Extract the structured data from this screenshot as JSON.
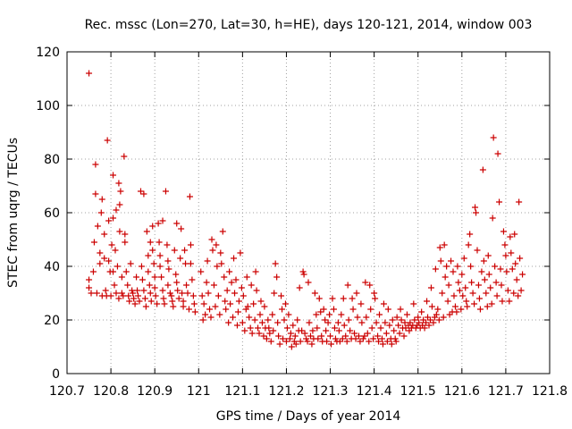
{
  "chart_data": {
    "type": "scatter",
    "title": "Rec. mssc (Lon=270, Lat=30, h=HE), days 120-121, 2014, window 003",
    "xlabel": "GPS time / Days of year 2014",
    "ylabel": "STEC from uqrg / TECUs",
    "xlim": [
      120.7,
      121.8
    ],
    "ylim": [
      0,
      120
    ],
    "xticks": [
      120.7,
      120.8,
      120.9,
      121.0,
      121.1,
      121.2,
      121.3,
      121.4,
      121.5,
      121.6,
      121.7,
      121.8
    ],
    "xtick_labels": [
      "120.7",
      "120.8",
      "120.9",
      "121",
      "121.1",
      "121.2",
      "121.3",
      "121.4",
      "121.5",
      "121.6",
      "121.7",
      "121.8"
    ],
    "yticks": [
      0,
      20,
      40,
      60,
      80,
      100,
      120
    ],
    "ytick_labels": [
      "0",
      "20",
      "40",
      "60",
      "80",
      "100",
      "120"
    ],
    "grid": true,
    "marker": "+",
    "color": "#cc0000",
    "points": [
      [
        120.75,
        112
      ],
      [
        120.75,
        35
      ],
      [
        120.75,
        32
      ],
      [
        120.755,
        30
      ],
      [
        120.76,
        38
      ],
      [
        120.762,
        49
      ],
      [
        120.765,
        78
      ],
      [
        120.765,
        67
      ],
      [
        120.768,
        30
      ],
      [
        120.77,
        55
      ],
      [
        120.775,
        45
      ],
      [
        120.775,
        41
      ],
      [
        120.778,
        60
      ],
      [
        120.78,
        65
      ],
      [
        120.78,
        29
      ],
      [
        120.785,
        52
      ],
      [
        120.785,
        43
      ],
      [
        120.788,
        31
      ],
      [
        120.79,
        29
      ],
      [
        120.792,
        87
      ],
      [
        120.795,
        57
      ],
      [
        120.795,
        42
      ],
      [
        120.798,
        38
      ],
      [
        120.8,
        29
      ],
      [
        120.802,
        48
      ],
      [
        120.805,
        74
      ],
      [
        120.805,
        58
      ],
      [
        120.805,
        38
      ],
      [
        120.808,
        33
      ],
      [
        120.81,
        46
      ],
      [
        120.812,
        61
      ],
      [
        120.812,
        30
      ],
      [
        120.815,
        40
      ],
      [
        120.818,
        71
      ],
      [
        120.818,
        28
      ],
      [
        120.82,
        63
      ],
      [
        120.82,
        53
      ],
      [
        120.822,
        68
      ],
      [
        120.825,
        36
      ],
      [
        120.825,
        30
      ],
      [
        120.828,
        29
      ],
      [
        120.83,
        81
      ],
      [
        120.832,
        52
      ],
      [
        120.832,
        49
      ],
      [
        120.835,
        38
      ],
      [
        120.838,
        33
      ],
      [
        120.84,
        29
      ],
      [
        120.842,
        27
      ],
      [
        120.845,
        41
      ],
      [
        120.848,
        31
      ],
      [
        120.85,
        30
      ],
      [
        120.852,
        28
      ],
      [
        120.855,
        26
      ],
      [
        120.858,
        36
      ],
      [
        120.86,
        31
      ],
      [
        120.862,
        29
      ],
      [
        120.865,
        27
      ],
      [
        120.868,
        68
      ],
      [
        120.87,
        40
      ],
      [
        120.872,
        35
      ],
      [
        120.875,
        67
      ],
      [
        120.875,
        31
      ],
      [
        120.878,
        28
      ],
      [
        120.88,
        25
      ],
      [
        120.882,
        53
      ],
      [
        120.885,
        44
      ],
      [
        120.885,
        38
      ],
      [
        120.888,
        33
      ],
      [
        120.89,
        49
      ],
      [
        120.89,
        30
      ],
      [
        120.892,
        27
      ],
      [
        120.895,
        55
      ],
      [
        120.895,
        46
      ],
      [
        120.898,
        41
      ],
      [
        120.9,
        36
      ],
      [
        120.9,
        32
      ],
      [
        120.902,
        29
      ],
      [
        120.905,
        26
      ],
      [
        120.908,
        56
      ],
      [
        120.91,
        49
      ],
      [
        120.912,
        44
      ],
      [
        120.912,
        40
      ],
      [
        120.915,
        36
      ],
      [
        120.918,
        57
      ],
      [
        120.918,
        31
      ],
      [
        120.92,
        28
      ],
      [
        120.922,
        26
      ],
      [
        120.925,
        68
      ],
      [
        120.928,
        48
      ],
      [
        120.93,
        42
      ],
      [
        120.93,
        33
      ],
      [
        120.932,
        39
      ],
      [
        120.935,
        30
      ],
      [
        120.938,
        29
      ],
      [
        120.94,
        27
      ],
      [
        120.942,
        25
      ],
      [
        120.945,
        46
      ],
      [
        120.948,
        37
      ],
      [
        120.95,
        56
      ],
      [
        120.95,
        34
      ],
      [
        120.952,
        31
      ],
      [
        120.955,
        28
      ],
      [
        120.958,
        43
      ],
      [
        120.96,
        54
      ],
      [
        120.962,
        30
      ],
      [
        120.965,
        27
      ],
      [
        120.965,
        25
      ],
      [
        120.968,
        46
      ],
      [
        120.97,
        41
      ],
      [
        120.972,
        33
      ],
      [
        120.975,
        30
      ],
      [
        120.978,
        24
      ],
      [
        120.98,
        66
      ],
      [
        120.982,
        48
      ],
      [
        120.982,
        41
      ],
      [
        120.985,
        35
      ],
      [
        120.988,
        29
      ],
      [
        120.99,
        26
      ],
      [
        120.992,
        23
      ],
      [
        121.005,
        38
      ],
      [
        121.008,
        29
      ],
      [
        121.01,
        20
      ],
      [
        121.012,
        26
      ],
      [
        121.015,
        22
      ],
      [
        121.018,
        34
      ],
      [
        121.02,
        42
      ],
      [
        121.022,
        30
      ],
      [
        121.025,
        24
      ],
      [
        121.028,
        21
      ],
      [
        121.03,
        50
      ],
      [
        121.032,
        46
      ],
      [
        121.035,
        33
      ],
      [
        121.038,
        25
      ],
      [
        121.04,
        48
      ],
      [
        121.042,
        40
      ],
      [
        121.045,
        29
      ],
      [
        121.048,
        22
      ],
      [
        121.05,
        45
      ],
      [
        121.052,
        41
      ],
      [
        121.055,
        53
      ],
      [
        121.058,
        36
      ],
      [
        121.06,
        27
      ],
      [
        121.062,
        24
      ],
      [
        121.065,
        31
      ],
      [
        121.068,
        19
      ],
      [
        121.07,
        38
      ],
      [
        121.072,
        26
      ],
      [
        121.075,
        34
      ],
      [
        121.078,
        21
      ],
      [
        121.08,
        43
      ],
      [
        121.082,
        30
      ],
      [
        121.085,
        35
      ],
      [
        121.088,
        18
      ],
      [
        121.09,
        23
      ],
      [
        121.092,
        27
      ],
      [
        121.095,
        45
      ],
      [
        121.098,
        32
      ],
      [
        121.1,
        19
      ],
      [
        121.102,
        29
      ],
      [
        121.105,
        16
      ],
      [
        121.108,
        24
      ],
      [
        121.11,
        36
      ],
      [
        121.112,
        25
      ],
      [
        121.115,
        21
      ],
      [
        121.118,
        17
      ],
      [
        121.12,
        33
      ],
      [
        121.122,
        15
      ],
      [
        121.125,
        26
      ],
      [
        121.128,
        20
      ],
      [
        121.13,
        38
      ],
      [
        121.132,
        31
      ],
      [
        121.135,
        17
      ],
      [
        121.138,
        15
      ],
      [
        121.14,
        22
      ],
      [
        121.142,
        27
      ],
      [
        121.145,
        19
      ],
      [
        121.148,
        14
      ],
      [
        121.15,
        25
      ],
      [
        121.152,
        17
      ],
      [
        121.155,
        13
      ],
      [
        121.158,
        20
      ],
      [
        121.16,
        17
      ],
      [
        121.162,
        15
      ],
      [
        121.165,
        12
      ],
      [
        121.168,
        22
      ],
      [
        121.17,
        16
      ],
      [
        121.172,
        30
      ],
      [
        121.175,
        41
      ],
      [
        121.178,
        36
      ],
      [
        121.18,
        19
      ],
      [
        121.182,
        14
      ],
      [
        121.185,
        11
      ],
      [
        121.188,
        29
      ],
      [
        121.19,
        24
      ],
      [
        121.192,
        13
      ],
      [
        121.195,
        20
      ],
      [
        121.198,
        26
      ],
      [
        121.2,
        12
      ],
      [
        121.202,
        17
      ],
      [
        121.205,
        22
      ],
      [
        121.208,
        13
      ],
      [
        121.21,
        15
      ],
      [
        121.212,
        10
      ],
      [
        121.215,
        18
      ],
      [
        121.218,
        12
      ],
      [
        121.22,
        14
      ],
      [
        121.222,
        11
      ],
      [
        121.225,
        20
      ],
      [
        121.228,
        16
      ],
      [
        121.23,
        32
      ],
      [
        121.232,
        12
      ],
      [
        121.235,
        16
      ],
      [
        121.238,
        38
      ],
      [
        121.24,
        37
      ],
      [
        121.242,
        15
      ],
      [
        121.245,
        13
      ],
      [
        121.248,
        12
      ],
      [
        121.25,
        34
      ],
      [
        121.252,
        19
      ],
      [
        121.255,
        14
      ],
      [
        121.258,
        11
      ],
      [
        121.26,
        16
      ],
      [
        121.262,
        13
      ],
      [
        121.265,
        30
      ],
      [
        121.268,
        22
      ],
      [
        121.27,
        17
      ],
      [
        121.272,
        13
      ],
      [
        121.275,
        28
      ],
      [
        121.278,
        23
      ],
      [
        121.28,
        14
      ],
      [
        121.282,
        12
      ],
      [
        121.285,
        24
      ],
      [
        121.288,
        20
      ],
      [
        121.29,
        16
      ],
      [
        121.292,
        12
      ],
      [
        121.295,
        19
      ],
      [
        121.298,
        22
      ],
      [
        121.3,
        14
      ],
      [
        121.302,
        11
      ],
      [
        121.305,
        28
      ],
      [
        121.308,
        24
      ],
      [
        121.31,
        17
      ],
      [
        121.312,
        13
      ],
      [
        121.315,
        12
      ],
      [
        121.318,
        19
      ],
      [
        121.32,
        16
      ],
      [
        121.322,
        12
      ],
      [
        121.325,
        22
      ],
      [
        121.328,
        13
      ],
      [
        121.33,
        28
      ],
      [
        121.332,
        18
      ],
      [
        121.335,
        14
      ],
      [
        121.338,
        12
      ],
      [
        121.34,
        33
      ],
      [
        121.342,
        20
      ],
      [
        121.345,
        16
      ],
      [
        121.348,
        13
      ],
      [
        121.35,
        28
      ],
      [
        121.352,
        24
      ],
      [
        121.355,
        15
      ],
      [
        121.358,
        13
      ],
      [
        121.36,
        30
      ],
      [
        121.362,
        21
      ],
      [
        121.365,
        14
      ],
      [
        121.368,
        12
      ],
      [
        121.37,
        26
      ],
      [
        121.372,
        19
      ],
      [
        121.375,
        13
      ],
      [
        121.378,
        14
      ],
      [
        121.38,
        34
      ],
      [
        121.382,
        21
      ],
      [
        121.385,
        15
      ],
      [
        121.388,
        12
      ],
      [
        121.39,
        33
      ],
      [
        121.392,
        24
      ],
      [
        121.395,
        17
      ],
      [
        121.398,
        13
      ],
      [
        121.4,
        30
      ],
      [
        121.402,
        28
      ],
      [
        121.405,
        19
      ],
      [
        121.408,
        14
      ],
      [
        121.41,
        12
      ],
      [
        121.412,
        22
      ],
      [
        121.415,
        17
      ],
      [
        121.418,
        13
      ],
      [
        121.42,
        11
      ],
      [
        121.422,
        26
      ],
      [
        121.425,
        19
      ],
      [
        121.428,
        15
      ],
      [
        121.43,
        12
      ],
      [
        121.432,
        24
      ],
      [
        121.435,
        18
      ],
      [
        121.438,
        13
      ],
      [
        121.44,
        11
      ],
      [
        121.442,
        20
      ],
      [
        121.445,
        16
      ],
      [
        121.448,
        13
      ],
      [
        121.45,
        12
      ],
      [
        121.452,
        21
      ],
      [
        121.455,
        18
      ],
      [
        121.458,
        15
      ],
      [
        121.46,
        24
      ],
      [
        121.462,
        20
      ],
      [
        121.465,
        17
      ],
      [
        121.468,
        14
      ],
      [
        121.47,
        19
      ],
      [
        121.472,
        17
      ],
      [
        121.475,
        22
      ],
      [
        121.478,
        18
      ],
      [
        121.48,
        16
      ],
      [
        121.482,
        19
      ],
      [
        121.485,
        17
      ],
      [
        121.488,
        18
      ],
      [
        121.49,
        26
      ],
      [
        121.492,
        20
      ],
      [
        121.495,
        17
      ],
      [
        121.498,
        18
      ],
      [
        121.5,
        21
      ],
      [
        121.502,
        19
      ],
      [
        121.505,
        17
      ],
      [
        121.508,
        23
      ],
      [
        121.51,
        18
      ],
      [
        121.512,
        20
      ],
      [
        121.515,
        17
      ],
      [
        121.518,
        19
      ],
      [
        121.52,
        27
      ],
      [
        121.522,
        21
      ],
      [
        121.525,
        18
      ],
      [
        121.528,
        20
      ],
      [
        121.53,
        32
      ],
      [
        121.532,
        25
      ],
      [
        121.535,
        19
      ],
      [
        121.538,
        21
      ],
      [
        121.54,
        39
      ],
      [
        121.542,
        22
      ],
      [
        121.545,
        24
      ],
      [
        121.548,
        20
      ],
      [
        121.55,
        47
      ],
      [
        121.552,
        42
      ],
      [
        121.555,
        30
      ],
      [
        121.558,
        21
      ],
      [
        121.56,
        48
      ],
      [
        121.562,
        36
      ],
      [
        121.565,
        40
      ],
      [
        121.568,
        27
      ],
      [
        121.57,
        33
      ],
      [
        121.572,
        22
      ],
      [
        121.575,
        42
      ],
      [
        121.578,
        23
      ],
      [
        121.58,
        38
      ],
      [
        121.582,
        29
      ],
      [
        121.585,
        25
      ],
      [
        121.588,
        23
      ],
      [
        121.59,
        40
      ],
      [
        121.592,
        34
      ],
      [
        121.595,
        31
      ],
      [
        121.598,
        24
      ],
      [
        121.6,
        37
      ],
      [
        121.602,
        29
      ],
      [
        121.605,
        43
      ],
      [
        121.608,
        32
      ],
      [
        121.61,
        27
      ],
      [
        121.612,
        25
      ],
      [
        121.615,
        48
      ],
      [
        121.618,
        52
      ],
      [
        121.62,
        40
      ],
      [
        121.622,
        34
      ],
      [
        121.625,
        30
      ],
      [
        121.628,
        26
      ],
      [
        121.63,
        62
      ],
      [
        121.632,
        60
      ],
      [
        121.635,
        46
      ],
      [
        121.638,
        33
      ],
      [
        121.64,
        28
      ],
      [
        121.642,
        24
      ],
      [
        121.645,
        38
      ],
      [
        121.648,
        76
      ],
      [
        121.65,
        42
      ],
      [
        121.652,
        35
      ],
      [
        121.655,
        30
      ],
      [
        121.658,
        25
      ],
      [
        121.66,
        44
      ],
      [
        121.662,
        37
      ],
      [
        121.665,
        32
      ],
      [
        121.668,
        26
      ],
      [
        121.67,
        58
      ],
      [
        121.672,
        88
      ],
      [
        121.675,
        40
      ],
      [
        121.678,
        34
      ],
      [
        121.68,
        29
      ],
      [
        121.682,
        82
      ],
      [
        121.685,
        64
      ],
      [
        121.688,
        39
      ],
      [
        121.69,
        33
      ],
      [
        121.692,
        27
      ],
      [
        121.695,
        53
      ],
      [
        121.698,
        48
      ],
      [
        121.7,
        44
      ],
      [
        121.702,
        38
      ],
      [
        121.705,
        31
      ],
      [
        121.708,
        27
      ],
      [
        121.71,
        51
      ],
      [
        121.712,
        45
      ],
      [
        121.715,
        39
      ],
      [
        121.718,
        30
      ],
      [
        121.72,
        52
      ],
      [
        121.722,
        41
      ],
      [
        121.725,
        35
      ],
      [
        121.728,
        29
      ],
      [
        121.73,
        64
      ],
      [
        121.732,
        43
      ],
      [
        121.735,
        31
      ],
      [
        121.738,
        37
      ]
    ]
  }
}
